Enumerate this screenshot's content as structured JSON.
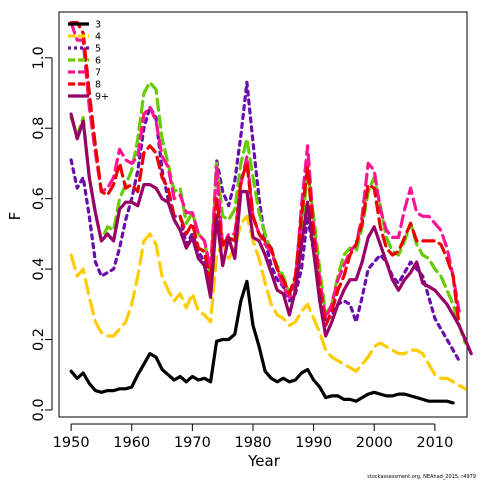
{
  "chart_data": {
    "type": "line",
    "xlabel": "Year",
    "ylabel": "F",
    "xlim": [
      1948,
      2015.3
    ],
    "ylim": [
      -0.02,
      1.13
    ],
    "x_ticks": [
      "1950",
      "1960",
      "1970",
      "1980",
      "1990",
      "2000",
      "2010"
    ],
    "y_ticks": [
      "0.0",
      "0.2",
      "0.4",
      "0.6",
      "0.8",
      "1.0"
    ],
    "legend_position": "top-left",
    "grid": false,
    "credit": "stockassessment.org, NEAhad_2015, r4979",
    "series": [
      {
        "name": "3",
        "color": "#000000",
        "dash": "solid",
        "values": [
          0.11,
          0.09,
          0.105,
          0.075,
          0.055,
          0.05,
          0.055,
          0.055,
          0.06,
          0.06,
          0.065,
          0.1,
          0.13,
          0.16,
          0.15,
          0.115,
          0.1,
          0.085,
          0.095,
          0.08,
          0.095,
          0.085,
          0.09,
          0.08,
          0.195,
          0.2,
          0.2,
          0.215,
          0.31,
          0.365,
          0.24,
          0.18,
          0.11,
          0.09,
          0.08,
          0.09,
          0.08,
          0.085,
          0.105,
          0.115,
          0.085,
          0.065,
          0.035,
          0.04,
          0.04,
          0.03,
          0.03,
          0.025,
          0.035,
          0.045,
          0.05,
          0.045,
          0.04,
          0.04,
          0.045,
          0.045,
          0.04,
          0.035,
          0.03,
          0.025,
          0.025,
          0.025,
          0.025,
          0.02
        ]
      },
      {
        "name": "4",
        "color": "#FFCC00",
        "dash": "long",
        "values": [
          0.44,
          0.38,
          0.4,
          0.32,
          0.25,
          0.22,
          0.21,
          0.21,
          0.23,
          0.25,
          0.3,
          0.38,
          0.48,
          0.5,
          0.47,
          0.38,
          0.34,
          0.31,
          0.33,
          0.29,
          0.33,
          0.28,
          0.27,
          0.25,
          0.44,
          0.47,
          0.43,
          0.46,
          0.53,
          0.55,
          0.48,
          0.43,
          0.36,
          0.3,
          0.27,
          0.26,
          0.24,
          0.25,
          0.28,
          0.3,
          0.26,
          0.22,
          0.17,
          0.15,
          0.14,
          0.13,
          0.12,
          0.11,
          0.13,
          0.15,
          0.18,
          0.19,
          0.18,
          0.17,
          0.16,
          0.16,
          0.17,
          0.17,
          0.16,
          0.13,
          0.1,
          0.09,
          0.09,
          0.08,
          0.07,
          0.06
        ]
      },
      {
        "name": "5",
        "color": "#6A0DAD",
        "dash": "dotted",
        "values": [
          0.71,
          0.63,
          0.66,
          0.55,
          0.42,
          0.38,
          0.39,
          0.4,
          0.46,
          0.54,
          0.6,
          0.68,
          0.8,
          0.86,
          0.83,
          0.68,
          0.6,
          0.55,
          0.55,
          0.47,
          0.5,
          0.45,
          0.42,
          0.35,
          0.71,
          0.62,
          0.58,
          0.65,
          0.78,
          0.93,
          0.76,
          0.6,
          0.48,
          0.41,
          0.37,
          0.35,
          0.31,
          0.33,
          0.4,
          0.55,
          0.45,
          0.34,
          0.25,
          0.27,
          0.3,
          0.31,
          0.3,
          0.25,
          0.32,
          0.4,
          0.42,
          0.44,
          0.42,
          0.38,
          0.36,
          0.39,
          0.42,
          0.4,
          0.38,
          0.32,
          0.26,
          0.23,
          0.2,
          0.17,
          0.14
        ]
      },
      {
        "name": "6",
        "color": "#66CC00",
        "dash": "dashed",
        "values": [
          0.83,
          0.78,
          0.83,
          0.66,
          0.56,
          0.48,
          0.52,
          0.51,
          0.6,
          0.64,
          0.68,
          0.77,
          0.9,
          0.93,
          0.91,
          0.77,
          0.7,
          0.62,
          0.63,
          0.53,
          0.56,
          0.5,
          0.48,
          0.38,
          0.7,
          0.55,
          0.54,
          0.57,
          0.7,
          0.77,
          0.66,
          0.56,
          0.5,
          0.45,
          0.41,
          0.38,
          0.33,
          0.37,
          0.5,
          0.68,
          0.55,
          0.4,
          0.27,
          0.3,
          0.38,
          0.44,
          0.46,
          0.45,
          0.52,
          0.62,
          0.66,
          0.58,
          0.49,
          0.45,
          0.44,
          0.48,
          0.53,
          0.47,
          0.44,
          0.43,
          0.4,
          0.38,
          0.34,
          0.3,
          0.24,
          0.19
        ]
      },
      {
        "name": "7",
        "color": "#FF1493",
        "dash": "dashed",
        "values": [
          1.1,
          1.05,
          1.05,
          0.86,
          0.73,
          0.62,
          0.63,
          0.66,
          0.74,
          0.71,
          0.7,
          0.72,
          0.84,
          0.86,
          0.82,
          0.72,
          0.69,
          0.6,
          0.61,
          0.56,
          0.56,
          0.5,
          0.48,
          0.4,
          0.69,
          0.46,
          0.5,
          0.5,
          0.64,
          0.72,
          0.55,
          0.5,
          0.47,
          0.45,
          0.4,
          0.35,
          0.32,
          0.36,
          0.58,
          0.75,
          0.52,
          0.37,
          0.26,
          0.3,
          0.37,
          0.41,
          0.45,
          0.47,
          0.55,
          0.7,
          0.68,
          0.57,
          0.51,
          0.49,
          0.49,
          0.57,
          0.63,
          0.56,
          0.55,
          0.55,
          0.53,
          0.51,
          0.46,
          0.38,
          0.28
        ]
      },
      {
        "name": "8",
        "color": "#EE0000",
        "dash": "dashed",
        "values": [
          1.1,
          1.1,
          1.07,
          0.9,
          0.75,
          0.62,
          0.61,
          0.64,
          0.7,
          0.63,
          0.64,
          0.62,
          0.73,
          0.75,
          0.73,
          0.66,
          0.63,
          0.55,
          0.55,
          0.5,
          0.53,
          0.46,
          0.45,
          0.36,
          0.6,
          0.47,
          0.49,
          0.48,
          0.65,
          0.7,
          0.55,
          0.5,
          0.48,
          0.46,
          0.4,
          0.37,
          0.33,
          0.38,
          0.55,
          0.69,
          0.5,
          0.34,
          0.24,
          0.28,
          0.34,
          0.38,
          0.44,
          0.47,
          0.53,
          0.64,
          0.63,
          0.52,
          0.46,
          0.44,
          0.45,
          0.49,
          0.53,
          0.48,
          0.48,
          0.48,
          0.48,
          0.47,
          0.43,
          0.38,
          0.24
        ]
      },
      {
        "name": "9+",
        "color": "#990066",
        "dash": "solid",
        "values": [
          0.84,
          0.77,
          0.82,
          0.66,
          0.56,
          0.48,
          0.5,
          0.48,
          0.57,
          0.59,
          0.59,
          0.58,
          0.64,
          0.64,
          0.63,
          0.6,
          0.59,
          0.54,
          0.51,
          0.46,
          0.49,
          0.43,
          0.41,
          0.32,
          0.55,
          0.41,
          0.49,
          0.43,
          0.62,
          0.62,
          0.49,
          0.48,
          0.44,
          0.39,
          0.34,
          0.33,
          0.27,
          0.34,
          0.47,
          0.59,
          0.45,
          0.31,
          0.21,
          0.25,
          0.3,
          0.34,
          0.37,
          0.37,
          0.42,
          0.49,
          0.52,
          0.47,
          0.42,
          0.37,
          0.34,
          0.37,
          0.39,
          0.42,
          0.36,
          0.35,
          0.34,
          0.32,
          0.3,
          0.27,
          0.24,
          0.2,
          0.16
        ]
      }
    ]
  }
}
